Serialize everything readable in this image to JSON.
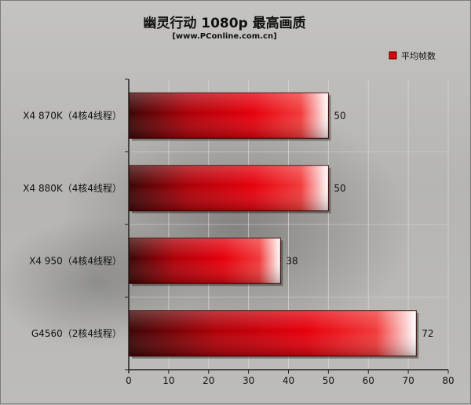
{
  "chart_data": {
    "type": "bar",
    "orientation": "horizontal",
    "title": "幽灵行动 1080p 最高画质",
    "subtitle": "[www.PConline.com.cn]",
    "categories": [
      "X4 870K（4核4线程）",
      "X4 880K（4核4线程）",
      "X4 950（4核4线程）",
      "G4560（2核4线程）"
    ],
    "series": [
      {
        "name": "平均帧数",
        "values": [
          50,
          50,
          38,
          72
        ]
      }
    ],
    "xlim": [
      0,
      80
    ],
    "ticks": [
      0,
      10,
      20,
      30,
      40,
      50,
      60,
      70,
      80
    ],
    "grid": true,
    "legend_position": "top-right",
    "colors": {
      "bar_dark": "#5a0a0a",
      "bar_main": "#e0000a",
      "bar_highlight": "#ffffff"
    }
  }
}
